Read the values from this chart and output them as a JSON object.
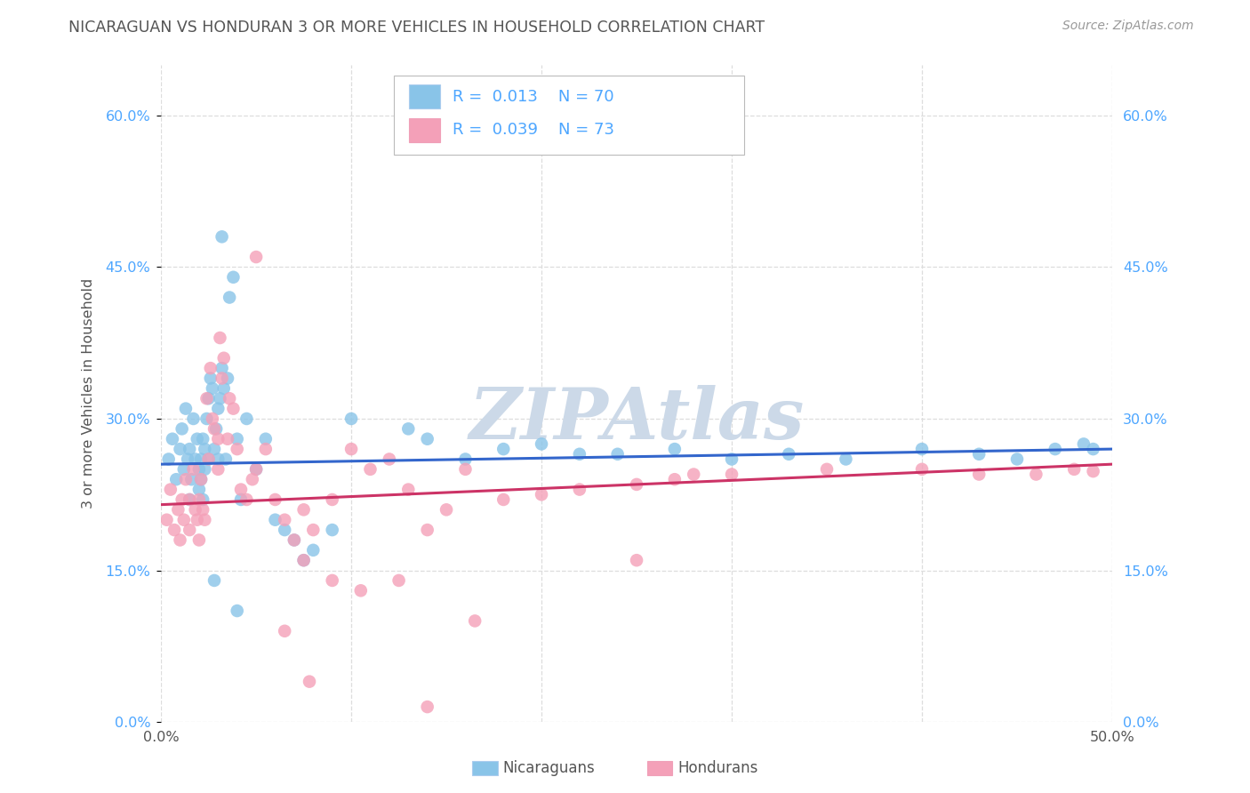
{
  "title": "NICARAGUAN VS HONDURAN 3 OR MORE VEHICLES IN HOUSEHOLD CORRELATION CHART",
  "source": "Source: ZipAtlas.com",
  "ylabel": "3 or more Vehicles in Household",
  "xlim": [
    0.0,
    50.0
  ],
  "ylim": [
    0.0,
    65.0
  ],
  "yticks": [
    0.0,
    15.0,
    30.0,
    45.0,
    60.0
  ],
  "ytick_labels": [
    "0.0%",
    "15.0%",
    "30.0%",
    "45.0%",
    "60.0%"
  ],
  "xticks": [
    0.0,
    10.0,
    20.0,
    30.0,
    40.0,
    50.0
  ],
  "blue_color": "#89c4e8",
  "pink_color": "#f4a0b8",
  "blue_line_color": "#3366cc",
  "pink_line_color": "#cc3366",
  "axis_text_color": "#4da6ff",
  "title_color": "#555555",
  "source_color": "#999999",
  "blue_scatter_x": [
    0.4,
    0.6,
    0.8,
    1.0,
    1.1,
    1.2,
    1.3,
    1.4,
    1.5,
    1.5,
    1.6,
    1.7,
    1.8,
    1.9,
    2.0,
    2.0,
    2.1,
    2.1,
    2.2,
    2.2,
    2.3,
    2.3,
    2.4,
    2.5,
    2.5,
    2.6,
    2.7,
    2.8,
    2.9,
    3.0,
    3.0,
    3.1,
    3.2,
    3.3,
    3.5,
    3.6,
    3.8,
    4.0,
    4.2,
    4.5,
    5.0,
    5.5,
    6.0,
    6.5,
    7.0,
    7.5,
    8.0,
    9.0,
    10.0,
    13.0,
    14.0,
    16.0,
    18.0,
    20.0,
    22.0,
    24.0,
    27.0,
    30.0,
    33.0,
    36.0,
    40.0,
    43.0,
    45.0,
    47.0,
    48.5,
    49.0,
    3.2,
    3.4,
    2.8,
    4.0
  ],
  "blue_scatter_y": [
    26.0,
    28.0,
    24.0,
    27.0,
    29.0,
    25.0,
    31.0,
    26.0,
    27.0,
    22.0,
    24.0,
    30.0,
    26.0,
    28.0,
    25.0,
    23.0,
    26.0,
    24.0,
    22.0,
    28.0,
    27.0,
    25.0,
    30.0,
    32.0,
    26.0,
    34.0,
    33.0,
    27.0,
    29.0,
    31.0,
    26.0,
    32.0,
    35.0,
    33.0,
    34.0,
    42.0,
    44.0,
    28.0,
    22.0,
    30.0,
    25.0,
    28.0,
    20.0,
    19.0,
    18.0,
    16.0,
    17.0,
    19.0,
    30.0,
    29.0,
    28.0,
    26.0,
    27.0,
    27.5,
    26.5,
    26.5,
    27.0,
    26.0,
    26.5,
    26.0,
    27.0,
    26.5,
    26.0,
    27.0,
    27.5,
    27.0,
    48.0,
    26.0,
    14.0,
    11.0
  ],
  "pink_scatter_x": [
    0.3,
    0.5,
    0.7,
    0.9,
    1.0,
    1.1,
    1.2,
    1.3,
    1.5,
    1.5,
    1.7,
    1.8,
    1.9,
    2.0,
    2.0,
    2.1,
    2.2,
    2.3,
    2.4,
    2.5,
    2.6,
    2.7,
    2.8,
    3.0,
    3.0,
    3.1,
    3.2,
    3.3,
    3.5,
    3.6,
    3.8,
    4.0,
    4.2,
    4.5,
    4.8,
    5.0,
    5.5,
    6.0,
    6.5,
    7.0,
    7.5,
    8.0,
    9.0,
    10.0,
    11.0,
    12.0,
    13.0,
    14.0,
    15.0,
    16.0,
    18.0,
    20.0,
    22.0,
    25.0,
    27.0,
    28.0,
    30.0,
    35.0,
    40.0,
    43.0,
    46.0,
    48.0,
    49.0,
    5.0,
    14.0,
    25.0,
    9.0,
    10.5,
    7.5,
    12.5,
    16.5,
    6.5,
    7.8
  ],
  "pink_scatter_y": [
    20.0,
    23.0,
    19.0,
    21.0,
    18.0,
    22.0,
    20.0,
    24.0,
    22.0,
    19.0,
    25.0,
    21.0,
    20.0,
    22.0,
    18.0,
    24.0,
    21.0,
    20.0,
    32.0,
    26.0,
    35.0,
    30.0,
    29.0,
    28.0,
    25.0,
    38.0,
    34.0,
    36.0,
    28.0,
    32.0,
    31.0,
    27.0,
    23.0,
    22.0,
    24.0,
    25.0,
    27.0,
    22.0,
    20.0,
    18.0,
    21.0,
    19.0,
    22.0,
    27.0,
    25.0,
    26.0,
    23.0,
    19.0,
    21.0,
    25.0,
    22.0,
    22.5,
    23.0,
    23.5,
    24.0,
    24.5,
    24.5,
    25.0,
    25.0,
    24.5,
    24.5,
    25.0,
    24.8,
    46.0,
    1.5,
    16.0,
    14.0,
    13.0,
    16.0,
    14.0,
    10.0,
    9.0,
    4.0
  ],
  "blue_line_x": [
    0.0,
    50.0
  ],
  "blue_line_y": [
    25.5,
    27.0
  ],
  "pink_line_x": [
    0.0,
    50.0
  ],
  "pink_line_y": [
    21.5,
    25.5
  ],
  "watermark": "ZIPAtlas",
  "watermark_color": "#ccd9e8",
  "background_color": "#ffffff",
  "grid_color": "#dddddd"
}
